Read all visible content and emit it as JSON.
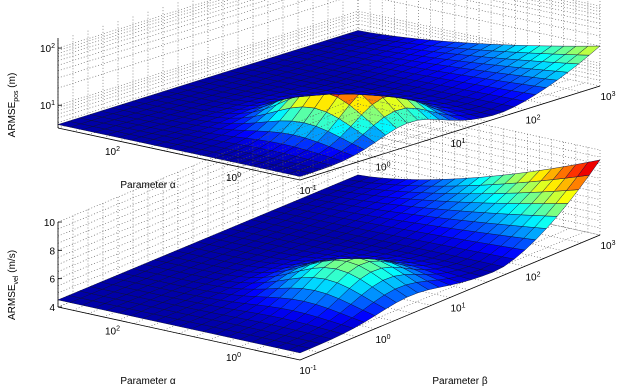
{
  "chart_data": [
    {
      "type": "surface",
      "id": "pos",
      "title": "",
      "zlabel": {
        "main": "ARMSE",
        "sub": "pos",
        "unit": " (m)"
      },
      "xlabel": "Parameter α",
      "ylabel": "Parameter β",
      "zscale": "log",
      "zlim": [
        4,
        150
      ],
      "z_ticks": [
        {
          "base": "10",
          "exp": "1",
          "value": 10
        },
        {
          "base": "10",
          "exp": "2",
          "value": 100
        }
      ],
      "alpha_ticks": [
        {
          "base": "10",
          "exp": "0",
          "value": 1
        },
        {
          "base": "10",
          "exp": "2",
          "value": 100
        }
      ],
      "beta_ticks": [
        {
          "base": "10",
          "exp": "-1",
          "value": 0.1
        },
        {
          "base": "10",
          "exp": "0",
          "value": 1
        },
        {
          "base": "10",
          "exp": "1",
          "value": 10
        },
        {
          "base": "10",
          "exp": "2",
          "value": 100
        },
        {
          "base": "10",
          "exp": "3",
          "value": 1000
        }
      ],
      "surface": {
        "baseline": 4.6,
        "peak_value": 52,
        "peak_alpha": 1,
        "peak_beta": 3,
        "high_beta_corner": 20
      },
      "grid": true,
      "colormap": "jet"
    },
    {
      "type": "surface",
      "id": "vel",
      "title": "",
      "zlabel": {
        "main": "ARMSE",
        "sub": "vel",
        "unit": " (m/s)"
      },
      "xlabel": "Parameter α",
      "ylabel": "Parameter β",
      "zscale": "linear",
      "zlim": [
        4,
        10
      ],
      "z_ticks": [
        {
          "base": "4",
          "exp": "",
          "value": 4
        },
        {
          "base": "6",
          "exp": "",
          "value": 6
        },
        {
          "base": "8",
          "exp": "",
          "value": 8
        },
        {
          "base": "10",
          "exp": "",
          "value": 10
        }
      ],
      "alpha_ticks": [
        {
          "base": "10",
          "exp": "0",
          "value": 1
        },
        {
          "base": "10",
          "exp": "2",
          "value": 100
        }
      ],
      "beta_ticks": [
        {
          "base": "10",
          "exp": "-1",
          "value": 0.1
        },
        {
          "base": "10",
          "exp": "0",
          "value": 1
        },
        {
          "base": "10",
          "exp": "1",
          "value": 10
        },
        {
          "base": "10",
          "exp": "2",
          "value": 100
        },
        {
          "base": "10",
          "exp": "3",
          "value": 1000
        }
      ],
      "surface": {
        "baseline": 4.5,
        "peak_value": 6.9,
        "peak_alpha": 1,
        "peak_beta": 3,
        "high_beta_corner": 9.3
      },
      "grid": true,
      "colormap": "jet"
    }
  ]
}
